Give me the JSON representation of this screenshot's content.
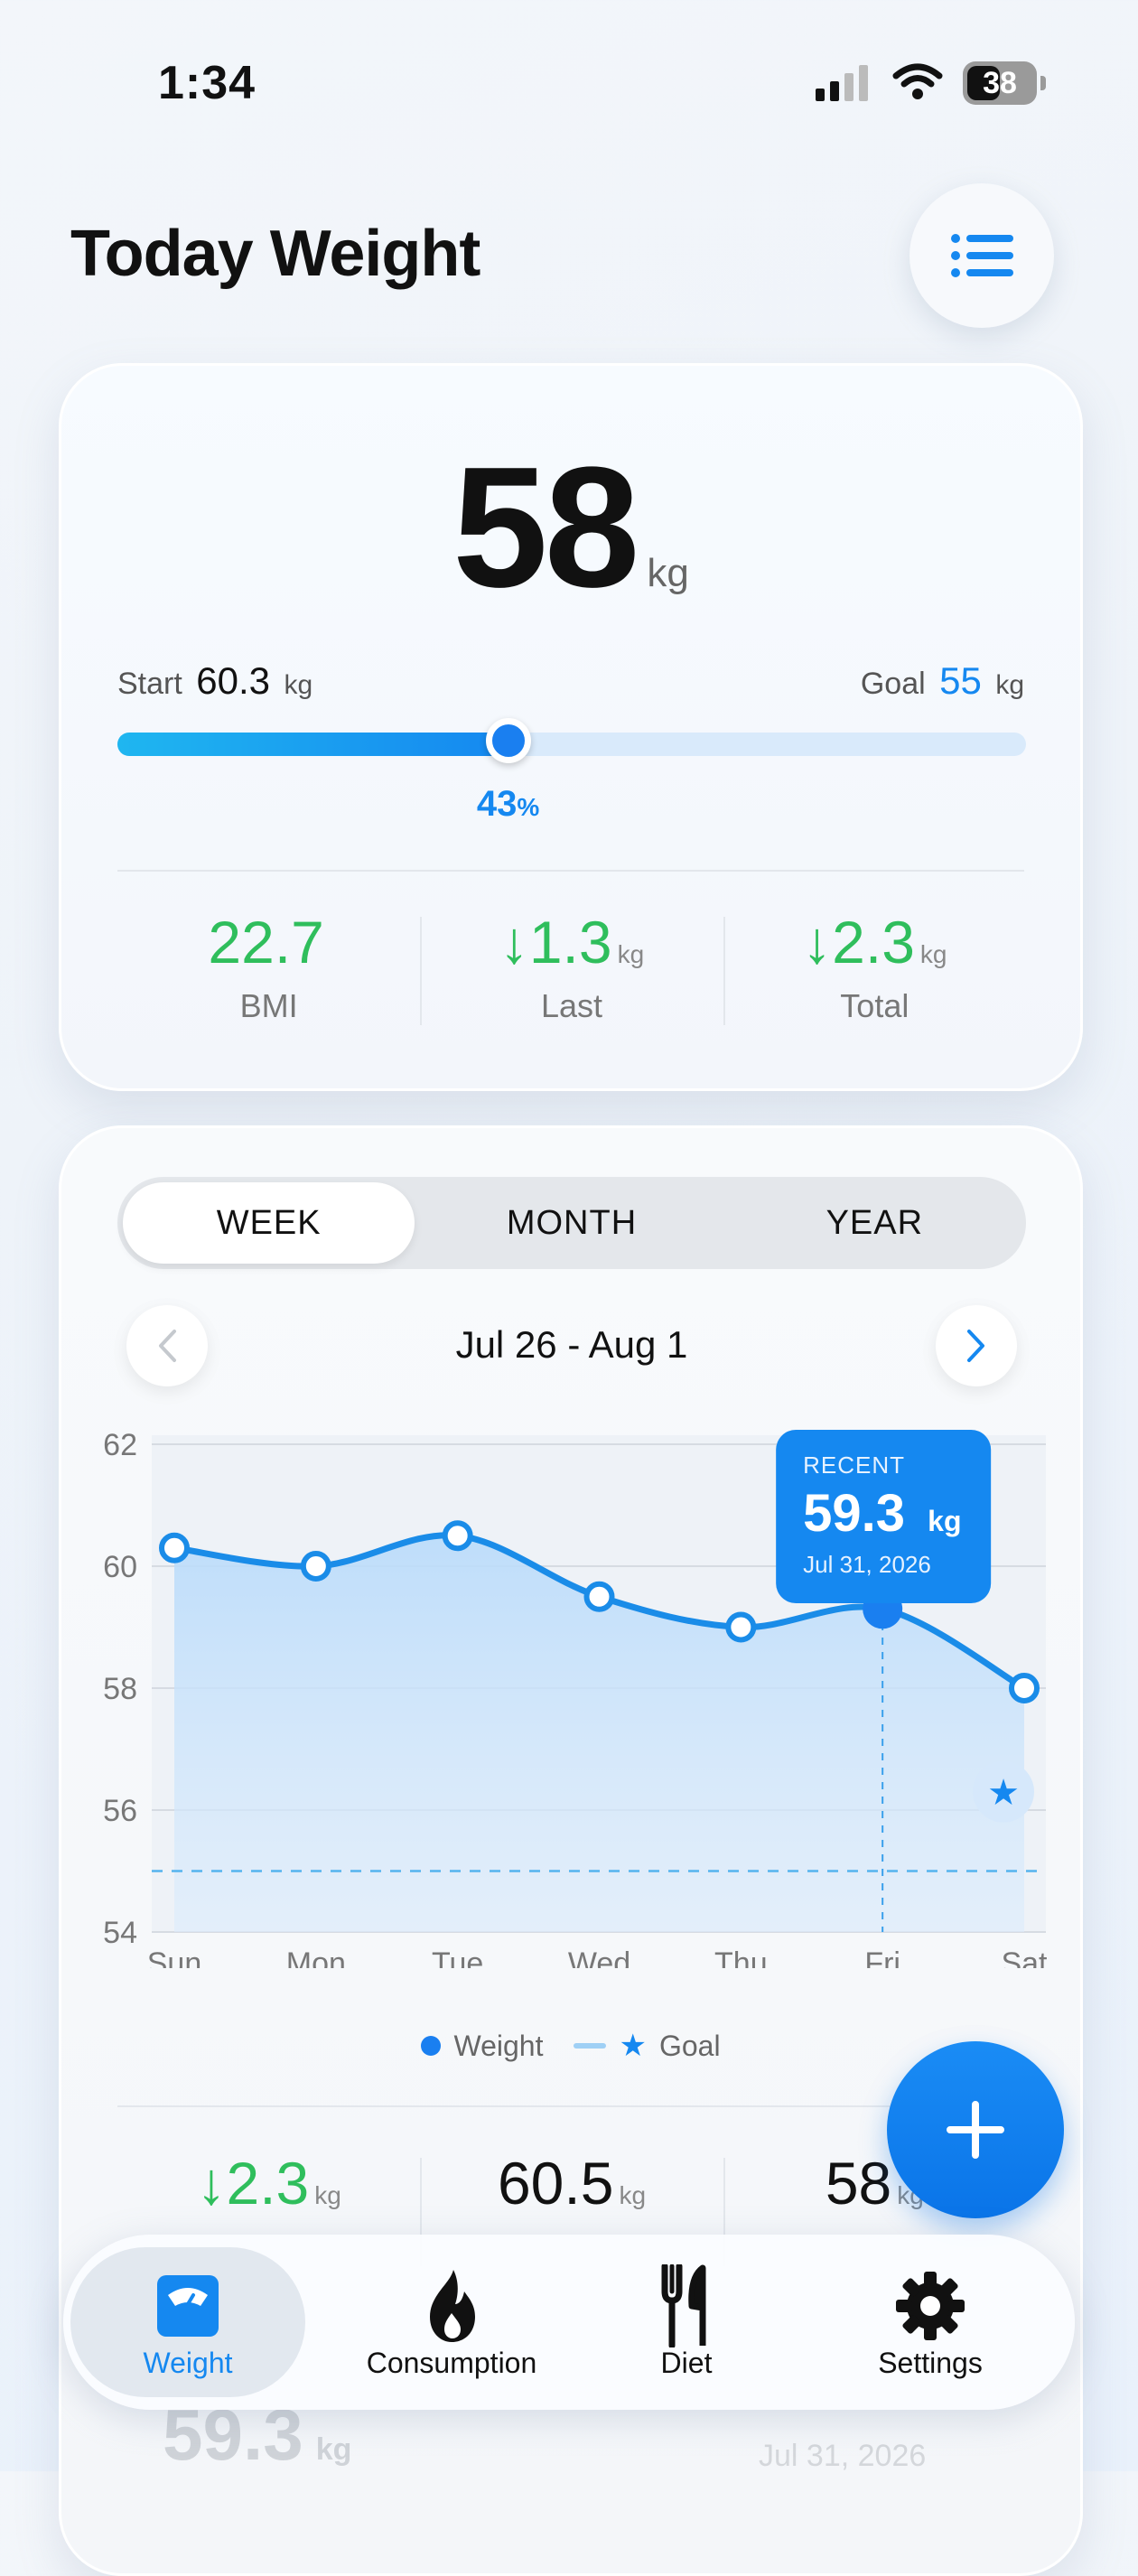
{
  "status_bar": {
    "time": "1:34",
    "battery": "38"
  },
  "header": {
    "title": "Today Weight",
    "menu_icon": "list-icon"
  },
  "summary": {
    "weight": "58",
    "weight_unit": "kg",
    "start_label": "Start",
    "start_value": "60.3",
    "start_unit": "kg",
    "goal_label": "Goal",
    "goal_value": "55",
    "goal_unit": "kg",
    "progress_percent": 43,
    "progress_value": "43",
    "progress_unit": "%",
    "stats": [
      {
        "value": "22.7",
        "unit": "",
        "arrow": "",
        "label": "BMI"
      },
      {
        "value": "1.3",
        "unit": "kg",
        "arrow": "↓",
        "label": "Last"
      },
      {
        "value": "2.3",
        "unit": "kg",
        "arrow": "↓",
        "label": "Total"
      }
    ]
  },
  "chart_card": {
    "tabs": [
      "WEEK",
      "MONTH",
      "YEAR"
    ],
    "active_tab": "WEEK",
    "range": "Jul 26 - Aug 1",
    "tooltip": {
      "title": "RECENT",
      "value": "59.3",
      "unit": "kg",
      "date": "Jul 31, 2026"
    },
    "legend": {
      "weight": "Weight",
      "goal": "Goal"
    },
    "stats": [
      {
        "value": "2.3",
        "unit": "kg",
        "arrow": "↓"
      },
      {
        "value": "60.5",
        "unit": "kg",
        "arrow": ""
      },
      {
        "value": "58",
        "unit": "kg",
        "arrow": ""
      }
    ],
    "behind_value": "59.3",
    "behind_unit": "kg",
    "behind_date": "Jul 31, 2026"
  },
  "chart_data": {
    "type": "area",
    "categories": [
      "Sun",
      "Mon",
      "Tue",
      "Wed",
      "Thu",
      "Fri",
      "Sat"
    ],
    "series": [
      {
        "name": "Weight",
        "values": [
          60.3,
          60.0,
          60.5,
          59.5,
          59.0,
          59.3,
          58.0
        ]
      }
    ],
    "goal": 55,
    "highlight_index": 5,
    "ylim": [
      54,
      62
    ],
    "yticks": [
      54,
      56,
      58,
      60,
      62
    ],
    "grid": true,
    "colors": {
      "line": "#1a8ce8",
      "fill": "#cfe6fb",
      "goal": "#55b3ee"
    }
  },
  "tabbar": {
    "items": [
      {
        "label": "Weight",
        "icon": "scale-icon",
        "active": true
      },
      {
        "label": "Consumption",
        "icon": "flame-icon",
        "active": false
      },
      {
        "label": "Diet",
        "icon": "fork-knife-icon",
        "active": false
      },
      {
        "label": "Settings",
        "icon": "gear-icon",
        "active": false
      }
    ]
  },
  "colors": {
    "accent": "#1588f0",
    "positive": "#2fbe5c"
  }
}
